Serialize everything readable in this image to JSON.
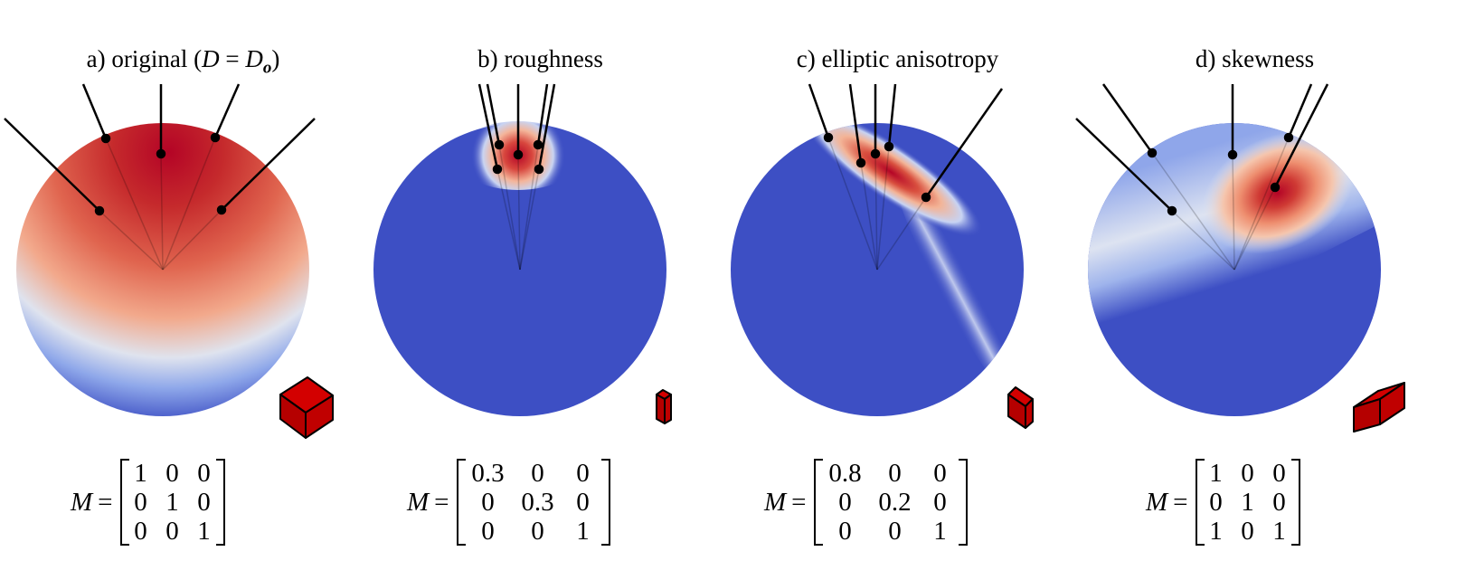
{
  "panels": [
    {
      "caption_prefix": "a) original (",
      "caption_var": "D",
      "caption_eq": " = ",
      "caption_sub_main": "D",
      "caption_sub": "o",
      "caption_suffix": ")",
      "matrix_lhs": "M",
      "matrix_eq": "=",
      "matrix": [
        [
          "1",
          "0",
          "0"
        ],
        [
          "0",
          "1",
          "0"
        ],
        [
          "0",
          "0",
          "1"
        ]
      ]
    },
    {
      "caption": "b) roughness",
      "matrix_lhs": "M",
      "matrix_eq": "=",
      "matrix": [
        [
          "0.3",
          "0",
          "0"
        ],
        [
          "0",
          "0.3",
          "0"
        ],
        [
          "0",
          "0",
          "1"
        ]
      ]
    },
    {
      "caption": "c) elliptic anisotropy",
      "matrix_lhs": "M",
      "matrix_eq": "=",
      "matrix": [
        [
          "0.8",
          "0",
          "0"
        ],
        [
          "0",
          "0.2",
          "0"
        ],
        [
          "0",
          "0",
          "1"
        ]
      ]
    },
    {
      "caption": "d) skewness",
      "matrix_lhs": "M",
      "matrix_eq": "=",
      "matrix": [
        [
          "1",
          "0",
          "0"
        ],
        [
          "0",
          "1",
          "0"
        ],
        [
          "1",
          "0",
          "1"
        ]
      ]
    }
  ],
  "colors": {
    "sphere_base": "#3d4fc4",
    "hot": "#b40426",
    "warm": "#e8886a",
    "pale": "#dde4f2",
    "box": "#cc0000"
  }
}
